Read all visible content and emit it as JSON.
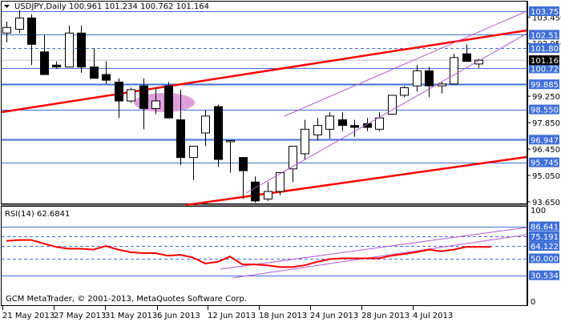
{
  "header": {
    "symbol": "USDJPY,Daily",
    "ohlc": "100.961 101.234 100.762 101.164",
    "collapse_icon": "triangle-down-icon"
  },
  "footer": {
    "copyright": "GCM MetaTrader, © 2001-2013, MetaQuotes Software Corp."
  },
  "rsi_panel": {
    "title": "RSI(14) 62.6841"
  },
  "colors": {
    "level_line": "#3f6fd8",
    "label_bg": "#3f6fd8",
    "trend_red": "#ff0000",
    "channel_purple": "#b454d4",
    "ellipse": "#dda0dd",
    "current_price_bg": "#000000",
    "grid_gray": "#c0c0c0"
  },
  "chart_data": [
    {
      "type": "candlestick",
      "title": "USDJPY,Daily",
      "price_axis": {
        "ticks": [
          103.45,
          102.05,
          99.25,
          97.85,
          96.45,
          95.05,
          93.65
        ],
        "range": [
          93.3,
          104.0
        ]
      },
      "x_axis_labels": [
        "21 May 2013",
        "27 May 2013",
        "31 May 2013",
        "6 Jun 2013",
        "12 Jun 2013",
        "18 Jun 2013",
        "24 Jun 2013",
        "28 Jun 2013",
        "4 Jul 2013"
      ],
      "horizontal_levels": [
        {
          "value": 103.758,
          "style": "solid"
        },
        {
          "value": 102.512,
          "style": "solid"
        },
        {
          "value": 101.806,
          "style": "dashed"
        },
        {
          "value": 100.726,
          "style": "solid"
        },
        {
          "value": 99.885,
          "style": "solid-thick"
        },
        {
          "value": 98.55,
          "style": "solid"
        },
        {
          "value": 96.947,
          "style": "solid-thick"
        },
        {
          "value": 95.745,
          "style": "solid"
        }
      ],
      "current_price": 101.164,
      "candles": [
        {
          "o": 102.6,
          "h": 103.2,
          "l": 102.1,
          "c": 102.9
        },
        {
          "o": 102.8,
          "h": 103.8,
          "l": 102.6,
          "c": 103.4
        },
        {
          "o": 103.4,
          "h": 103.6,
          "l": 100.9,
          "c": 102.0
        },
        {
          "o": 101.6,
          "h": 102.5,
          "l": 100.5,
          "c": 100.4
        },
        {
          "o": 100.9,
          "h": 101.1,
          "l": 100.7,
          "c": 100.8
        },
        {
          "o": 100.8,
          "h": 103.0,
          "l": 100.8,
          "c": 102.6
        },
        {
          "o": 102.6,
          "h": 103.0,
          "l": 100.5,
          "c": 100.8
        },
        {
          "o": 100.8,
          "h": 101.8,
          "l": 100.2,
          "c": 100.2
        },
        {
          "o": 100.4,
          "h": 101.1,
          "l": 99.9,
          "c": 100.1
        },
        {
          "o": 100.0,
          "h": 100.2,
          "l": 98.1,
          "c": 99.0
        },
        {
          "o": 99.0,
          "h": 99.7,
          "l": 98.9,
          "c": 99.6
        },
        {
          "o": 99.8,
          "h": 100.2,
          "l": 97.5,
          "c": 98.6
        },
        {
          "o": 98.6,
          "h": 99.7,
          "l": 98.3,
          "c": 99.0
        },
        {
          "o": 99.8,
          "h": 100.0,
          "l": 98.2,
          "c": 98.1
        },
        {
          "o": 98.0,
          "h": 99.6,
          "l": 95.6,
          "c": 96.0
        },
        {
          "o": 96.0,
          "h": 96.6,
          "l": 94.8,
          "c": 96.6
        },
        {
          "o": 97.3,
          "h": 98.5,
          "l": 96.6,
          "c": 98.2
        },
        {
          "o": 98.7,
          "h": 98.8,
          "l": 95.5,
          "c": 95.9
        },
        {
          "o": 96.9,
          "h": 96.9,
          "l": 95.2,
          "c": 96.9
        },
        {
          "o": 96.0,
          "h": 96.0,
          "l": 93.8,
          "c": 95.3
        },
        {
          "o": 94.7,
          "h": 95.0,
          "l": 93.6,
          "c": 93.7
        },
        {
          "o": 93.8,
          "h": 94.7,
          "l": 93.7,
          "c": 94.2
        },
        {
          "o": 94.2,
          "h": 95.1,
          "l": 94.0,
          "c": 95.2
        },
        {
          "o": 95.4,
          "h": 96.5,
          "l": 94.7,
          "c": 96.6
        },
        {
          "o": 96.2,
          "h": 98.0,
          "l": 95.9,
          "c": 97.5
        },
        {
          "o": 97.2,
          "h": 98.1,
          "l": 96.9,
          "c": 97.7
        },
        {
          "o": 97.5,
          "h": 98.4,
          "l": 97.0,
          "c": 98.2
        },
        {
          "o": 98.0,
          "h": 98.4,
          "l": 97.4,
          "c": 97.7
        },
        {
          "o": 97.7,
          "h": 98.0,
          "l": 97.1,
          "c": 97.6
        },
        {
          "o": 97.8,
          "h": 98.1,
          "l": 97.4,
          "c": 97.6
        },
        {
          "o": 97.5,
          "h": 98.4,
          "l": 97.4,
          "c": 98.1
        },
        {
          "o": 98.3,
          "h": 99.3,
          "l": 98.3,
          "c": 99.3
        },
        {
          "o": 99.3,
          "h": 99.8,
          "l": 99.2,
          "c": 99.7
        },
        {
          "o": 99.8,
          "h": 100.9,
          "l": 99.5,
          "c": 100.6
        },
        {
          "o": 100.6,
          "h": 100.8,
          "l": 99.2,
          "c": 99.8
        },
        {
          "o": 99.8,
          "h": 100.0,
          "l": 99.4,
          "c": 99.9
        },
        {
          "o": 99.9,
          "h": 101.5,
          "l": 99.9,
          "c": 101.3
        },
        {
          "o": 101.5,
          "h": 102.0,
          "l": 101.2,
          "c": 101.1
        },
        {
          "o": 100.96,
          "h": 101.23,
          "l": 100.76,
          "c": 101.16
        }
      ]
    },
    {
      "type": "line",
      "title": "RSI(14) 62.6841",
      "y_axis": {
        "ticks": [
          100,
          0
        ],
        "range": [
          0,
          100
        ]
      },
      "levels": [
        {
          "value": 86.641,
          "style": "solid"
        },
        {
          "value": 75.191,
          "style": "dashed"
        },
        {
          "value": 64.122,
          "style": "dashed"
        },
        {
          "value": 50.0,
          "style": "dashed"
        },
        {
          "value": 30.534,
          "style": "solid"
        }
      ],
      "series": [
        {
          "name": "RSI(14)",
          "values": [
            70,
            71,
            71,
            67,
            63,
            61,
            61,
            60,
            64,
            60,
            57,
            56,
            56,
            53,
            54,
            51,
            44,
            46,
            52,
            43,
            43,
            42,
            40,
            40,
            42,
            46,
            49,
            50,
            50,
            50,
            50,
            53,
            55,
            57,
            60,
            58,
            60,
            63,
            63,
            63
          ]
        }
      ]
    }
  ]
}
